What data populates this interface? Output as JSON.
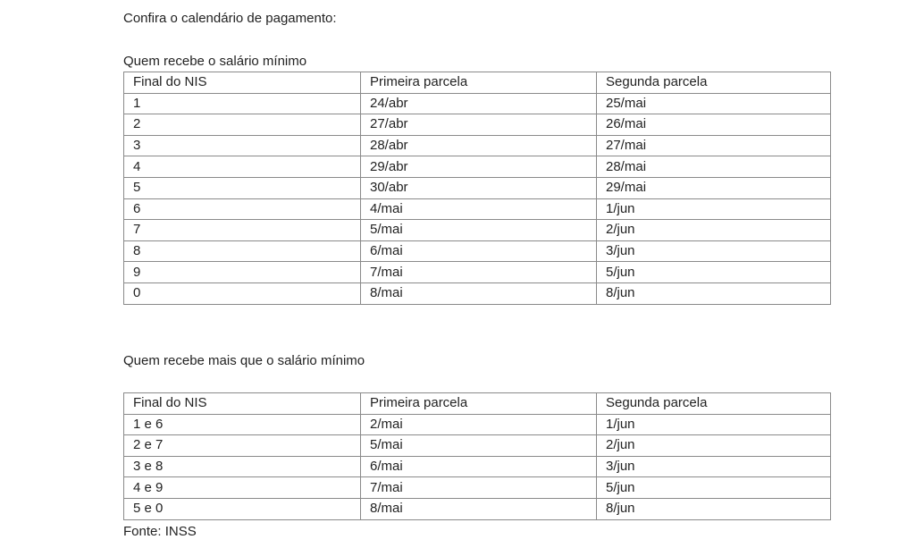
{
  "intro": "Confira o calendário de pagamento:",
  "tables": [
    {
      "title": "Quem recebe o salário mínimo",
      "headers": [
        "Final do NIS",
        "Primeira parcela",
        "Segunda parcela"
      ],
      "rows": [
        [
          "1",
          "24/abr",
          "25/mai"
        ],
        [
          "2",
          "27/abr",
          "26/mai"
        ],
        [
          "3",
          "28/abr",
          "27/mai"
        ],
        [
          "4",
          "29/abr",
          "28/mai"
        ],
        [
          "5",
          "30/abr",
          "29/mai"
        ],
        [
          "6",
          "4/mai",
          "1/jun"
        ],
        [
          "7",
          "5/mai",
          "2/jun"
        ],
        [
          "8",
          "6/mai",
          "3/jun"
        ],
        [
          "9",
          "7/mai",
          "5/jun"
        ],
        [
          "0",
          "8/mai",
          "8/jun"
        ]
      ]
    },
    {
      "title": "Quem recebe mais que o salário mínimo",
      "headers": [
        "Final do NIS",
        "Primeira parcela",
        "Segunda parcela"
      ],
      "rows": [
        [
          "1 e 6",
          "2/mai",
          "1/jun"
        ],
        [
          "2 e 7",
          "5/mai",
          "2/jun"
        ],
        [
          "3 e 8",
          "6/mai",
          "3/jun"
        ],
        [
          "4 e 9",
          "7/mai",
          "5/jun"
        ],
        [
          "5 e 0",
          "8/mai",
          "8/jun"
        ]
      ]
    }
  ],
  "source": "Fonte: INSS"
}
